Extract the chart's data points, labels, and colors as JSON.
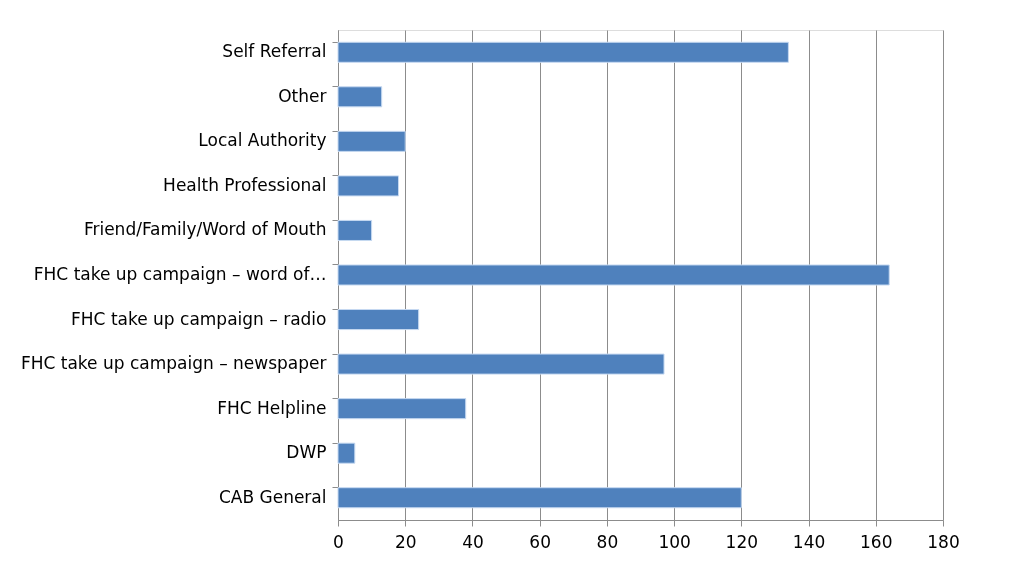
{
  "chart_data": {
    "type": "bar",
    "orientation": "horizontal",
    "categories": [
      "Self Referral",
      "Other",
      "Local Authority",
      "Health Professional",
      "Friend/Family/Word of Mouth",
      "FHC take up campaign – word of…",
      "FHC take up campaign – radio",
      "FHC take up campaign – newspaper",
      "FHC Helpline",
      "DWP",
      "CAB General"
    ],
    "values": [
      134,
      13,
      20,
      18,
      10,
      164,
      24,
      97,
      38,
      5,
      120
    ],
    "color": "#4f81bd",
    "xlim": [
      0,
      180
    ],
    "xticks": [
      0,
      20,
      40,
      60,
      80,
      100,
      120,
      140,
      160,
      180
    ],
    "grid": "x"
  }
}
